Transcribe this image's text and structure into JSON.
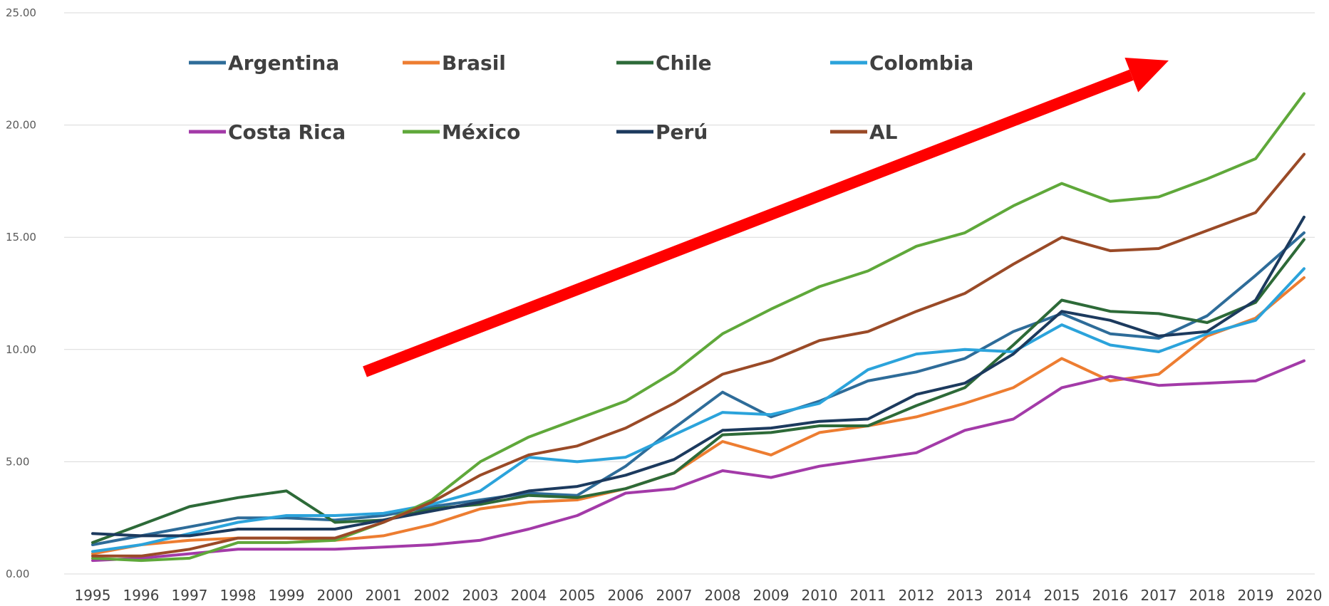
{
  "chart_data": {
    "type": "line",
    "title": "",
    "xlabel": "",
    "ylabel": "",
    "ylim": [
      0,
      25
    ],
    "y_ticks": [
      "0.00",
      "5.00",
      "10.00",
      "15.00",
      "20.00",
      "25.00"
    ],
    "y_tick_values": [
      0,
      5,
      10,
      15,
      20,
      25
    ],
    "grid": true,
    "legend_position": "top-left, inside plot, 2 rows",
    "annotation": "red arrow pointing upward (increasing trend)",
    "annotation_color": "#ff0000",
    "x": [
      "1995",
      "1996",
      "1997",
      "1998",
      "1999",
      "2000",
      "2001",
      "2002",
      "2003",
      "2004",
      "2005",
      "2006",
      "2007",
      "2008",
      "2009",
      "2010",
      "2011",
      "2012",
      "2013",
      "2014",
      "2015",
      "2016",
      "2017",
      "2018",
      "2019",
      "2020"
    ],
    "series": [
      {
        "name": "Argentina",
        "color": "#2e6c99",
        "values": [
          1.3,
          1.7,
          2.1,
          2.5,
          2.5,
          2.4,
          2.6,
          3.0,
          3.3,
          3.6,
          3.5,
          4.8,
          6.5,
          8.1,
          7.0,
          7.7,
          8.6,
          9.0,
          9.6,
          10.8,
          11.6,
          10.7,
          10.5,
          11.5,
          13.3,
          15.2
        ]
      },
      {
        "name": "Brasil",
        "color": "#ed7d31",
        "values": [
          0.9,
          1.3,
          1.5,
          1.6,
          1.6,
          1.5,
          1.7,
          2.2,
          2.9,
          3.2,
          3.3,
          3.8,
          4.5,
          5.9,
          5.3,
          6.3,
          6.6,
          7.0,
          7.6,
          8.3,
          9.6,
          8.6,
          8.9,
          10.6,
          11.4,
          13.2
        ]
      },
      {
        "name": "Chile",
        "color": "#2d6a38",
        "values": [
          1.4,
          2.2,
          3.0,
          3.4,
          3.7,
          2.3,
          2.4,
          2.9,
          3.1,
          3.5,
          3.4,
          3.8,
          4.5,
          6.2,
          6.3,
          6.6,
          6.6,
          7.5,
          8.3,
          10.2,
          12.2,
          11.7,
          11.6,
          11.2,
          12.1,
          14.9
        ]
      },
      {
        "name": "Colombia",
        "color": "#2ba3db",
        "values": [
          1.0,
          1.3,
          1.8,
          2.3,
          2.6,
          2.6,
          2.7,
          3.1,
          3.7,
          5.2,
          5.0,
          5.2,
          6.2,
          7.2,
          7.1,
          7.6,
          9.1,
          9.8,
          10.0,
          9.9,
          11.1,
          10.2,
          9.9,
          10.7,
          11.3,
          13.6
        ]
      },
      {
        "name": "Costa Rica",
        "color": "#a33aa8",
        "values": [
          0.6,
          0.7,
          0.9,
          1.1,
          1.1,
          1.1,
          1.2,
          1.3,
          1.5,
          2.0,
          2.6,
          3.6,
          3.8,
          4.6,
          4.3,
          4.8,
          5.1,
          5.4,
          6.4,
          6.9,
          8.3,
          8.8,
          8.4,
          8.5,
          8.6,
          9.5
        ]
      },
      {
        "name": "México",
        "color": "#5fa83a",
        "values": [
          0.7,
          0.6,
          0.7,
          1.4,
          1.4,
          1.5,
          2.3,
          3.3,
          5.0,
          6.1,
          6.9,
          7.7,
          9.0,
          10.7,
          11.8,
          12.8,
          13.5,
          14.6,
          15.2,
          16.4,
          17.4,
          16.6,
          16.8,
          17.6,
          18.5,
          21.4
        ]
      },
      {
        "name": "Perú",
        "color": "#1c3a5e",
        "values": [
          1.8,
          1.7,
          1.7,
          2.0,
          2.0,
          2.0,
          2.4,
          2.8,
          3.2,
          3.7,
          3.9,
          4.4,
          5.1,
          6.4,
          6.5,
          6.8,
          6.9,
          8.0,
          8.5,
          9.8,
          11.7,
          11.3,
          10.6,
          10.8,
          12.2,
          15.9
        ]
      },
      {
        "name": "AL",
        "color": "#9a4a27",
        "values": [
          0.8,
          0.8,
          1.1,
          1.6,
          1.6,
          1.6,
          2.3,
          3.2,
          4.4,
          5.3,
          5.7,
          6.5,
          7.6,
          8.9,
          9.5,
          10.4,
          10.8,
          11.7,
          12.5,
          13.8,
          15.0,
          14.4,
          14.5,
          15.3,
          16.1,
          18.7
        ]
      }
    ]
  }
}
